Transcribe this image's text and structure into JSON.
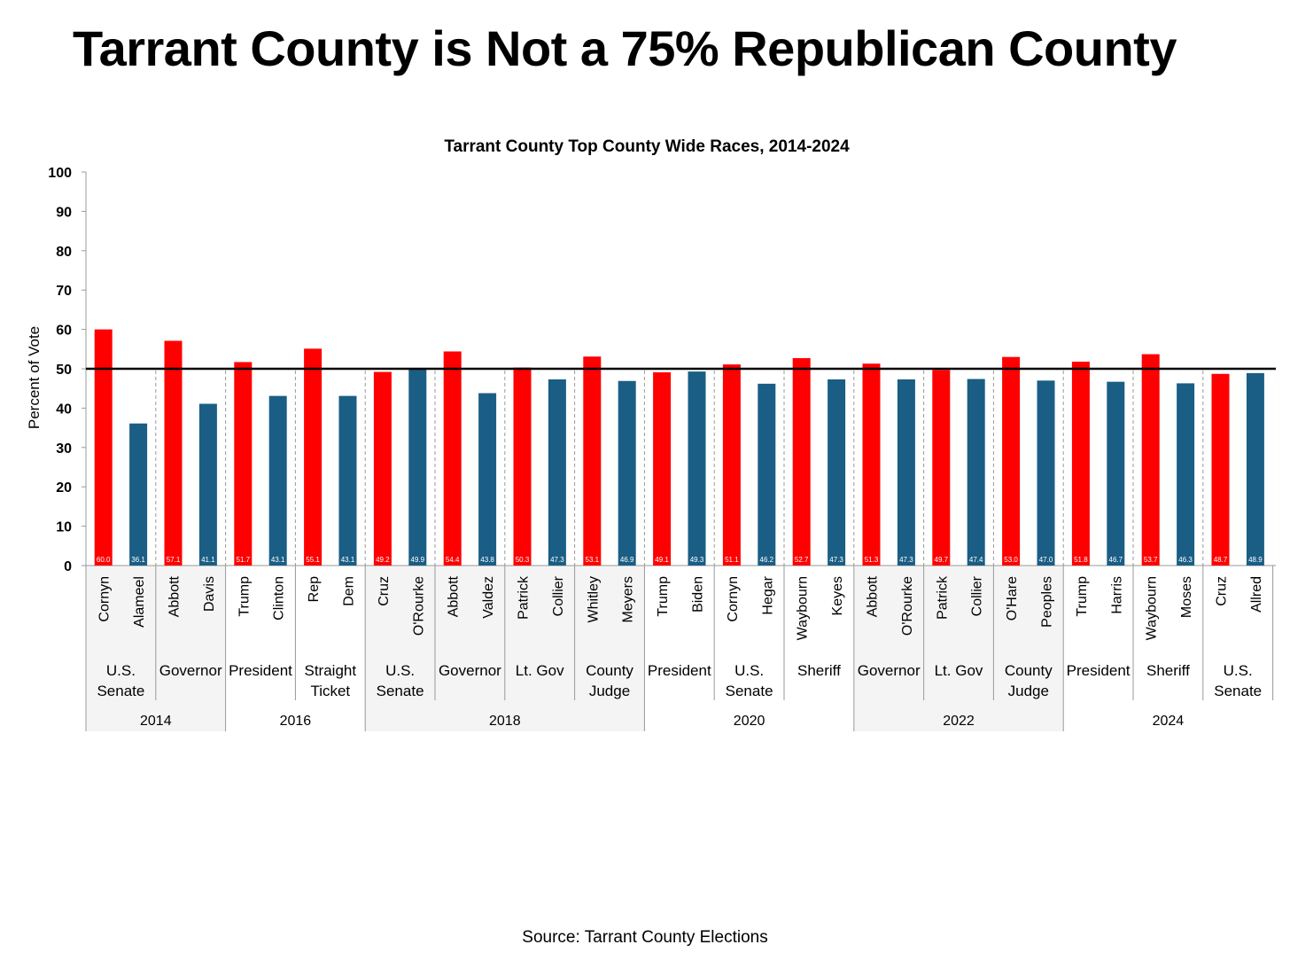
{
  "headline": "Tarrant County is Not a 75% Republican County",
  "source": "Source: Tarrant County Elections",
  "colors": {
    "republican": "#ff0000",
    "democrat": "#1a5e85",
    "band": "#f4f4f4",
    "axis": "#999999"
  },
  "chart_data": {
    "type": "bar",
    "title": "Tarrant County Top County Wide Races, 2014-2024",
    "ylabel": "Percent of Vote",
    "ylim": [
      0,
      100
    ],
    "yticks": [
      0,
      10,
      20,
      30,
      40,
      50,
      60,
      70,
      80,
      90,
      100
    ],
    "reference_line": 50,
    "grid": false,
    "candidates": [
      {
        "name": "Cornyn",
        "party": "R",
        "value": 60.0,
        "label": "60.0"
      },
      {
        "name": "Alameel",
        "party": "D",
        "value": 36.1,
        "label": "36.1"
      },
      {
        "name": "Abbott",
        "party": "R",
        "value": 57.1,
        "label": "57.1"
      },
      {
        "name": "Davis",
        "party": "D",
        "value": 41.1,
        "label": "41.1"
      },
      {
        "name": "Trump",
        "party": "R",
        "value": 51.7,
        "label": "51.7"
      },
      {
        "name": "Clinton",
        "party": "D",
        "value": 43.1,
        "label": "43.1"
      },
      {
        "name": "Rep",
        "party": "R",
        "value": 55.1,
        "label": "55.1"
      },
      {
        "name": "Dem",
        "party": "D",
        "value": 43.1,
        "label": "43.1"
      },
      {
        "name": "Cruz",
        "party": "R",
        "value": 49.2,
        "label": "49.2"
      },
      {
        "name": "O'Rourke",
        "party": "D",
        "value": 49.9,
        "label": "49.9"
      },
      {
        "name": "Abbott",
        "party": "R",
        "value": 54.4,
        "label": "54.4"
      },
      {
        "name": "Valdez",
        "party": "D",
        "value": 43.8,
        "label": "43.8"
      },
      {
        "name": "Patrick",
        "party": "R",
        "value": 50.3,
        "label": "50.3"
      },
      {
        "name": "Collier",
        "party": "D",
        "value": 47.3,
        "label": "47.3"
      },
      {
        "name": "Whitley",
        "party": "R",
        "value": 53.1,
        "label": "53.1"
      },
      {
        "name": "Meyers",
        "party": "D",
        "value": 46.9,
        "label": "46.9"
      },
      {
        "name": "Trump",
        "party": "R",
        "value": 49.1,
        "label": "49.1"
      },
      {
        "name": "Biden",
        "party": "D",
        "value": 49.3,
        "label": "49.3"
      },
      {
        "name": "Cornyn",
        "party": "R",
        "value": 51.1,
        "label": "51.1"
      },
      {
        "name": "Hegar",
        "party": "D",
        "value": 46.2,
        "label": "46.2"
      },
      {
        "name": "Waybourn",
        "party": "R",
        "value": 52.7,
        "label": "52.7"
      },
      {
        "name": "Keyes",
        "party": "D",
        "value": 47.3,
        "label": "47.3"
      },
      {
        "name": "Abbott",
        "party": "R",
        "value": 51.3,
        "label": "51.3"
      },
      {
        "name": "O'Rourke",
        "party": "D",
        "value": 47.3,
        "label": "47.3"
      },
      {
        "name": "Patrick",
        "party": "R",
        "value": 49.7,
        "label": "49.7"
      },
      {
        "name": "Collier",
        "party": "D",
        "value": 47.4,
        "label": "47.4"
      },
      {
        "name": "O'Hare",
        "party": "R",
        "value": 53.0,
        "label": "53.0"
      },
      {
        "name": "Peoples",
        "party": "D",
        "value": 47.0,
        "label": "47.0"
      },
      {
        "name": "Trump",
        "party": "R",
        "value": 51.8,
        "label": "51.8"
      },
      {
        "name": "Harris",
        "party": "D",
        "value": 46.7,
        "label": "46.7"
      },
      {
        "name": "Waybourn",
        "party": "R",
        "value": 53.7,
        "label": "53.7"
      },
      {
        "name": "Moses",
        "party": "D",
        "value": 46.3,
        "label": "46.3"
      },
      {
        "name": "Cruz",
        "party": "R",
        "value": 48.7,
        "label": "48.7"
      },
      {
        "name": "Allred",
        "party": "D",
        "value": 48.9,
        "label": "48.9"
      }
    ],
    "races": [
      {
        "lines": [
          "U.S.",
          "Senate"
        ],
        "year": "2014"
      },
      {
        "lines": [
          "Governor"
        ],
        "year": "2014"
      },
      {
        "lines": [
          "President"
        ],
        "year": "2016"
      },
      {
        "lines": [
          "Straight",
          "Ticket"
        ],
        "year": "2016"
      },
      {
        "lines": [
          "U.S.",
          "Senate"
        ],
        "year": "2018"
      },
      {
        "lines": [
          "Governor"
        ],
        "year": "2018"
      },
      {
        "lines": [
          "Lt. Gov"
        ],
        "year": "2018"
      },
      {
        "lines": [
          "County",
          "Judge"
        ],
        "year": "2018"
      },
      {
        "lines": [
          "President"
        ],
        "year": "2020"
      },
      {
        "lines": [
          "U.S.",
          "Senate"
        ],
        "year": "2020"
      },
      {
        "lines": [
          "Sheriff"
        ],
        "year": "2020"
      },
      {
        "lines": [
          "Governor"
        ],
        "year": "2022"
      },
      {
        "lines": [
          "Lt. Gov"
        ],
        "year": "2022"
      },
      {
        "lines": [
          "County",
          "Judge"
        ],
        "year": "2022"
      },
      {
        "lines": [
          "President"
        ],
        "year": "2024"
      },
      {
        "lines": [
          "Sheriff"
        ],
        "year": "2024"
      },
      {
        "lines": [
          "U.S.",
          "Senate"
        ],
        "year": "2024"
      }
    ],
    "years": [
      {
        "label": "2014",
        "races": 2,
        "shaded": true
      },
      {
        "label": "2016",
        "races": 2,
        "shaded": false
      },
      {
        "label": "2018",
        "races": 4,
        "shaded": true
      },
      {
        "label": "2020",
        "races": 3,
        "shaded": false
      },
      {
        "label": "2022",
        "races": 3,
        "shaded": true
      },
      {
        "label": "2024",
        "races": 3,
        "shaded": false
      }
    ]
  }
}
